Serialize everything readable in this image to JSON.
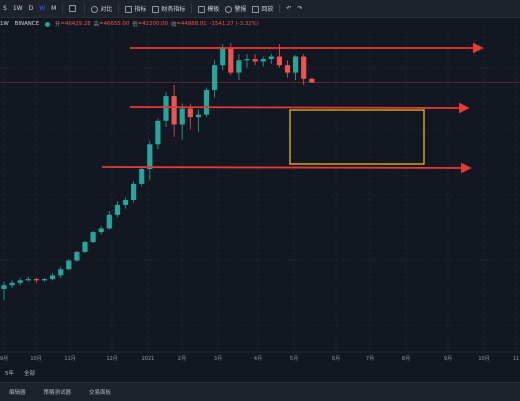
{
  "toolbar": {
    "interval_tabs": [
      "S",
      "1W",
      "D",
      "W",
      "M"
    ],
    "active_interval": "W",
    "compare_label": "对比",
    "indicators_label": "指标",
    "financials_label": "财务指标",
    "templates_label": "模板",
    "alert_label": "警报",
    "replay_label": "回放"
  },
  "legend": {
    "symbol": "1W",
    "exchange": "BINANCE",
    "open_key": "开",
    "open": "=46429.28",
    "high_key": "高",
    "high": "=46655.00",
    "low_key": "低",
    "low": "=42200.00",
    "close_key": "收",
    "close": "=44888.01",
    "change": "-1541.27 (-3.32%)",
    "up_color": "#26a69a",
    "down_color": "#ef5350"
  },
  "chart_data": {
    "type": "candlestick",
    "x_tick_labels": [
      "9月",
      "10月",
      "11月",
      "12月",
      "2021",
      "2月",
      "3月",
      "4月",
      "5月",
      "6月",
      "7月",
      "8月",
      "9月",
      "10月",
      "11"
    ],
    "candles": [
      {
        "o": 97,
        "h": 103,
        "l": 88,
        "c": 100
      },
      {
        "o": 100,
        "h": 104,
        "l": 98,
        "c": 102
      },
      {
        "o": 102,
        "h": 106,
        "l": 100,
        "c": 104
      },
      {
        "o": 104,
        "h": 107,
        "l": 103,
        "c": 105
      },
      {
        "o": 105,
        "h": 106,
        "l": 102,
        "c": 104
      },
      {
        "o": 104,
        "h": 106,
        "l": 103,
        "c": 105
      },
      {
        "o": 105,
        "h": 110,
        "l": 104,
        "c": 108
      },
      {
        "o": 108,
        "h": 115,
        "l": 106,
        "c": 113
      },
      {
        "o": 113,
        "h": 121,
        "l": 112,
        "c": 120
      },
      {
        "o": 120,
        "h": 128,
        "l": 119,
        "c": 127
      },
      {
        "o": 127,
        "h": 136,
        "l": 126,
        "c": 135
      },
      {
        "o": 135,
        "h": 144,
        "l": 134,
        "c": 143
      },
      {
        "o": 143,
        "h": 148,
        "l": 141,
        "c": 146
      },
      {
        "o": 146,
        "h": 160,
        "l": 145,
        "c": 157
      },
      {
        "o": 157,
        "h": 168,
        "l": 155,
        "c": 165
      },
      {
        "o": 165,
        "h": 171,
        "l": 162,
        "c": 169
      },
      {
        "o": 169,
        "h": 184,
        "l": 167,
        "c": 182
      },
      {
        "o": 182,
        "h": 196,
        "l": 180,
        "c": 194
      },
      {
        "o": 194,
        "h": 217,
        "l": 185,
        "c": 214
      },
      {
        "o": 214,
        "h": 235,
        "l": 210,
        "c": 233
      },
      {
        "o": 233,
        "h": 256,
        "l": 228,
        "c": 253
      },
      {
        "o": 253,
        "h": 262,
        "l": 220,
        "c": 230
      },
      {
        "o": 230,
        "h": 247,
        "l": 218,
        "c": 243
      },
      {
        "o": 243,
        "h": 247,
        "l": 226,
        "c": 236
      },
      {
        "o": 236,
        "h": 242,
        "l": 224,
        "c": 238
      },
      {
        "o": 238,
        "h": 260,
        "l": 236,
        "c": 258
      },
      {
        "o": 258,
        "h": 282,
        "l": 252,
        "c": 278
      },
      {
        "o": 278,
        "h": 295,
        "l": 274,
        "c": 292
      },
      {
        "o": 292,
        "h": 296,
        "l": 270,
        "c": 272
      },
      {
        "o": 272,
        "h": 287,
        "l": 266,
        "c": 282
      },
      {
        "o": 282,
        "h": 287,
        "l": 276,
        "c": 283
      },
      {
        "o": 283,
        "h": 287,
        "l": 278,
        "c": 281
      },
      {
        "o": 281,
        "h": 285,
        "l": 277,
        "c": 283
      },
      {
        "o": 283,
        "h": 287,
        "l": 279,
        "c": 285
      },
      {
        "o": 285,
        "h": 295,
        "l": 276,
        "c": 278
      },
      {
        "o": 278,
        "h": 282,
        "l": 268,
        "c": 272
      },
      {
        "o": 272,
        "h": 286,
        "l": 266,
        "c": 285
      },
      {
        "o": 285,
        "h": 287,
        "l": 262,
        "c": 267
      },
      {
        "o": 267,
        "h": 268,
        "l": 264,
        "c": 264
      }
    ],
    "annotations": {
      "red_arrow_lines": 3,
      "yellow_box": true
    }
  },
  "bottombar": {
    "labels": [
      "5年",
      "全部"
    ]
  },
  "panel_tabs": [
    "编辑器",
    "策略测试器",
    "交易面板"
  ]
}
